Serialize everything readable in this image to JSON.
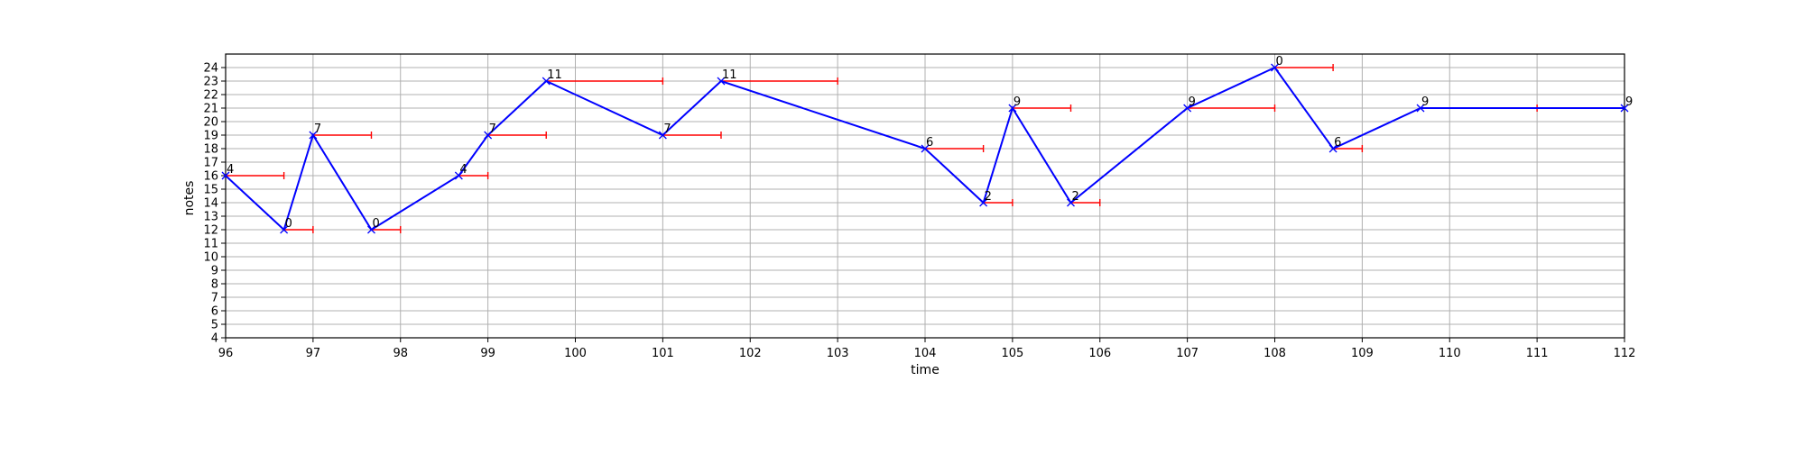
{
  "chart_data": {
    "type": "line",
    "title": "",
    "xlabel": "time",
    "ylabel": "notes",
    "xlim": [
      96,
      112
    ],
    "ylim": [
      4,
      25
    ],
    "x_ticks": [
      96,
      97,
      98,
      99,
      100,
      101,
      102,
      103,
      104,
      105,
      106,
      107,
      108,
      109,
      110,
      111,
      112
    ],
    "y_ticks": [
      4,
      5,
      6,
      7,
      8,
      9,
      10,
      11,
      12,
      13,
      14,
      15,
      16,
      17,
      18,
      19,
      20,
      21,
      22,
      23,
      24
    ],
    "grid": true,
    "legend": false,
    "line_color": "#0000ff",
    "duration_color": "#ff0000",
    "label_color": "#000000",
    "notes": [
      {
        "x": 96.0,
        "y": 16,
        "end": 96.667,
        "label": "4"
      },
      {
        "x": 96.667,
        "y": 12,
        "end": 97.0,
        "label": "0"
      },
      {
        "x": 97.0,
        "y": 19,
        "end": 97.667,
        "label": "7"
      },
      {
        "x": 97.667,
        "y": 12,
        "end": 98.0,
        "label": "0"
      },
      {
        "x": 98.667,
        "y": 16,
        "end": 99.0,
        "label": "4"
      },
      {
        "x": 99.0,
        "y": 19,
        "end": 99.667,
        "label": "7"
      },
      {
        "x": 99.667,
        "y": 23,
        "end": 101.0,
        "label": "11"
      },
      {
        "x": 101.0,
        "y": 19,
        "end": 101.667,
        "label": "7"
      },
      {
        "x": 101.667,
        "y": 23,
        "end": 103.0,
        "label": "11"
      },
      {
        "x": 104.0,
        "y": 18,
        "end": 104.667,
        "label": "6"
      },
      {
        "x": 104.667,
        "y": 14,
        "end": 105.0,
        "label": "2"
      },
      {
        "x": 105.0,
        "y": 21,
        "end": 105.667,
        "label": "9"
      },
      {
        "x": 105.667,
        "y": 14,
        "end": 106.0,
        "label": "2"
      },
      {
        "x": 107.0,
        "y": 21,
        "end": 108.0,
        "label": "9"
      },
      {
        "x": 108.0,
        "y": 24,
        "end": 108.667,
        "label": "0"
      },
      {
        "x": 108.667,
        "y": 18,
        "end": 109.0,
        "label": "6"
      },
      {
        "x": 109.667,
        "y": 21,
        "end": 111.0,
        "label": "9"
      },
      {
        "x": 112.0,
        "y": 21,
        "end": null,
        "label": "9"
      }
    ]
  }
}
